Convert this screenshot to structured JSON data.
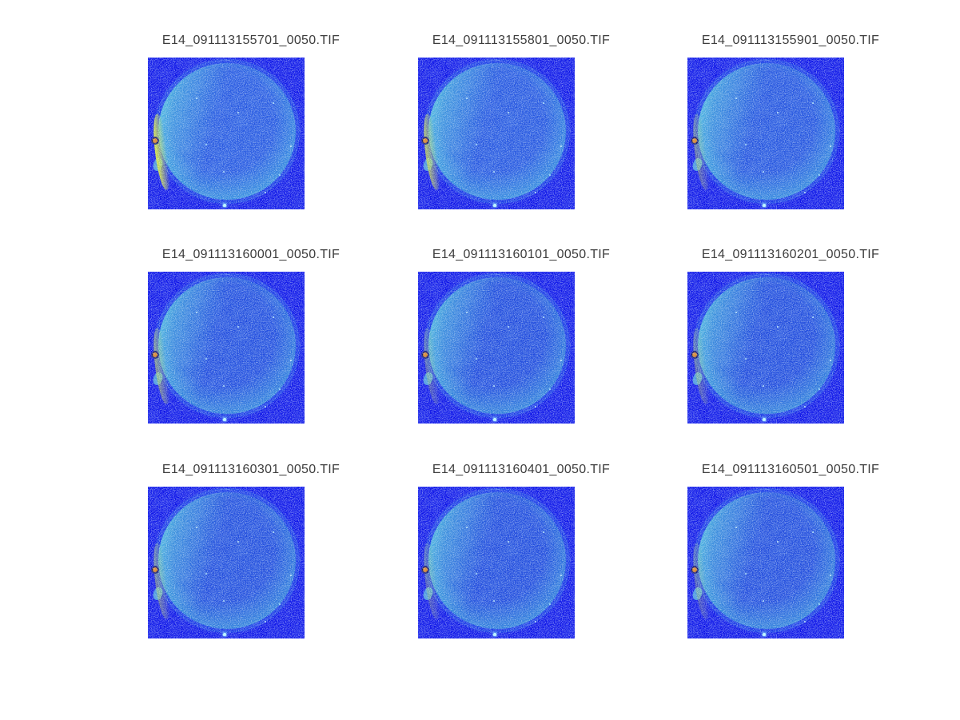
{
  "figure": {
    "background": "#ffffff",
    "title_color": "#3d3d3d"
  },
  "panels": [
    {
      "title": "E14_091113155701_0050.TIF",
      "bg": "#0a10e8",
      "inner": "#2355e1",
      "mid": "#2f85de",
      "rim": "#4cc9da",
      "streak": "#c8da3c",
      "streak_opacity": 0.95
    },
    {
      "title": "E14_091113155801_0050.TIF",
      "bg": "#0a10e8",
      "inner": "#2253e0",
      "mid": "#2e82de",
      "rim": "#4ac6da",
      "streak": "#c4d640",
      "streak_opacity": 0.75
    },
    {
      "title": "E14_091113155901_0050.TIF",
      "bg": "#0a10e8",
      "inner": "#2151df",
      "mid": "#2d7fdd",
      "rim": "#48c2dc",
      "streak": "#c0d246",
      "streak_opacity": 0.4
    },
    {
      "title": "E14_091113160001_0050.TIF",
      "bg": "#0a10e8",
      "inner": "#1e4ade",
      "mid": "#2b7adc",
      "rim": "#49c6dc",
      "streak": "#bdd24a",
      "streak_opacity": 0.55
    },
    {
      "title": "E14_091113160101_0050.TIF",
      "bg": "#0a10e8",
      "inner": "#1d48dd",
      "mid": "#2a78db",
      "rim": "#47c3db",
      "streak": "#bcd24c",
      "streak_opacity": 0.32
    },
    {
      "title": "E14_091113160201_0050.TIF",
      "bg": "#0a10e8",
      "inner": "#1d48dd",
      "mid": "#2a78db",
      "rim": "#47c3db",
      "streak": "#bcd24c",
      "streak_opacity": 0.36
    },
    {
      "title": "E14_091113160301_0050.TIF",
      "bg": "#0a10e8",
      "inner": "#1e4add",
      "mid": "#2b79db",
      "rim": "#49c6dc",
      "streak": "#bdd24a",
      "streak_opacity": 0.45
    },
    {
      "title": "E14_091113160401_0050.TIF",
      "bg": "#0a10e8",
      "inner": "#1d48dd",
      "mid": "#2a78db",
      "rim": "#47c3db",
      "streak": "#bcd24c",
      "streak_opacity": 0.3
    },
    {
      "title": "E14_091113160501_0050.TIF",
      "bg": "#0a10e8",
      "inner": "#1e49dd",
      "mid": "#2b79db",
      "rim": "#48c4db",
      "streak": "#bcd24c",
      "streak_opacity": 0.3
    }
  ],
  "chart_data": {
    "type": "heatmap",
    "subtype": "image-montage",
    "layout": {
      "rows": 3,
      "cols": 3,
      "background": "white",
      "axes": "off"
    },
    "colormap": "jet",
    "titles": [
      "E14_091113155701_0050.TIF",
      "E14_091113155801_0050.TIF",
      "E14_091113155901_0050.TIF",
      "E14_091113160001_0050.TIF",
      "E14_091113160101_0050.TIF",
      "E14_091113160201_0050.TIF",
      "E14_091113160301_0050.TIF",
      "E14_091113160401_0050.TIF",
      "E14_091113160501_0050.TIF"
    ],
    "description": "Nine sequential fluorescence TIF frames (one minute apart, 15:57:01 to 16:05:01 on 2009-11-13) displayed with a jet colormap: a bright cyan-rimmed circular specimen on a saturated blue background; the first frames show a yellow-green streak on the left rim that fades in later frames; each frame has an orange dust speck with a dark ring on the left edge and scattered bright speckle noise."
  }
}
